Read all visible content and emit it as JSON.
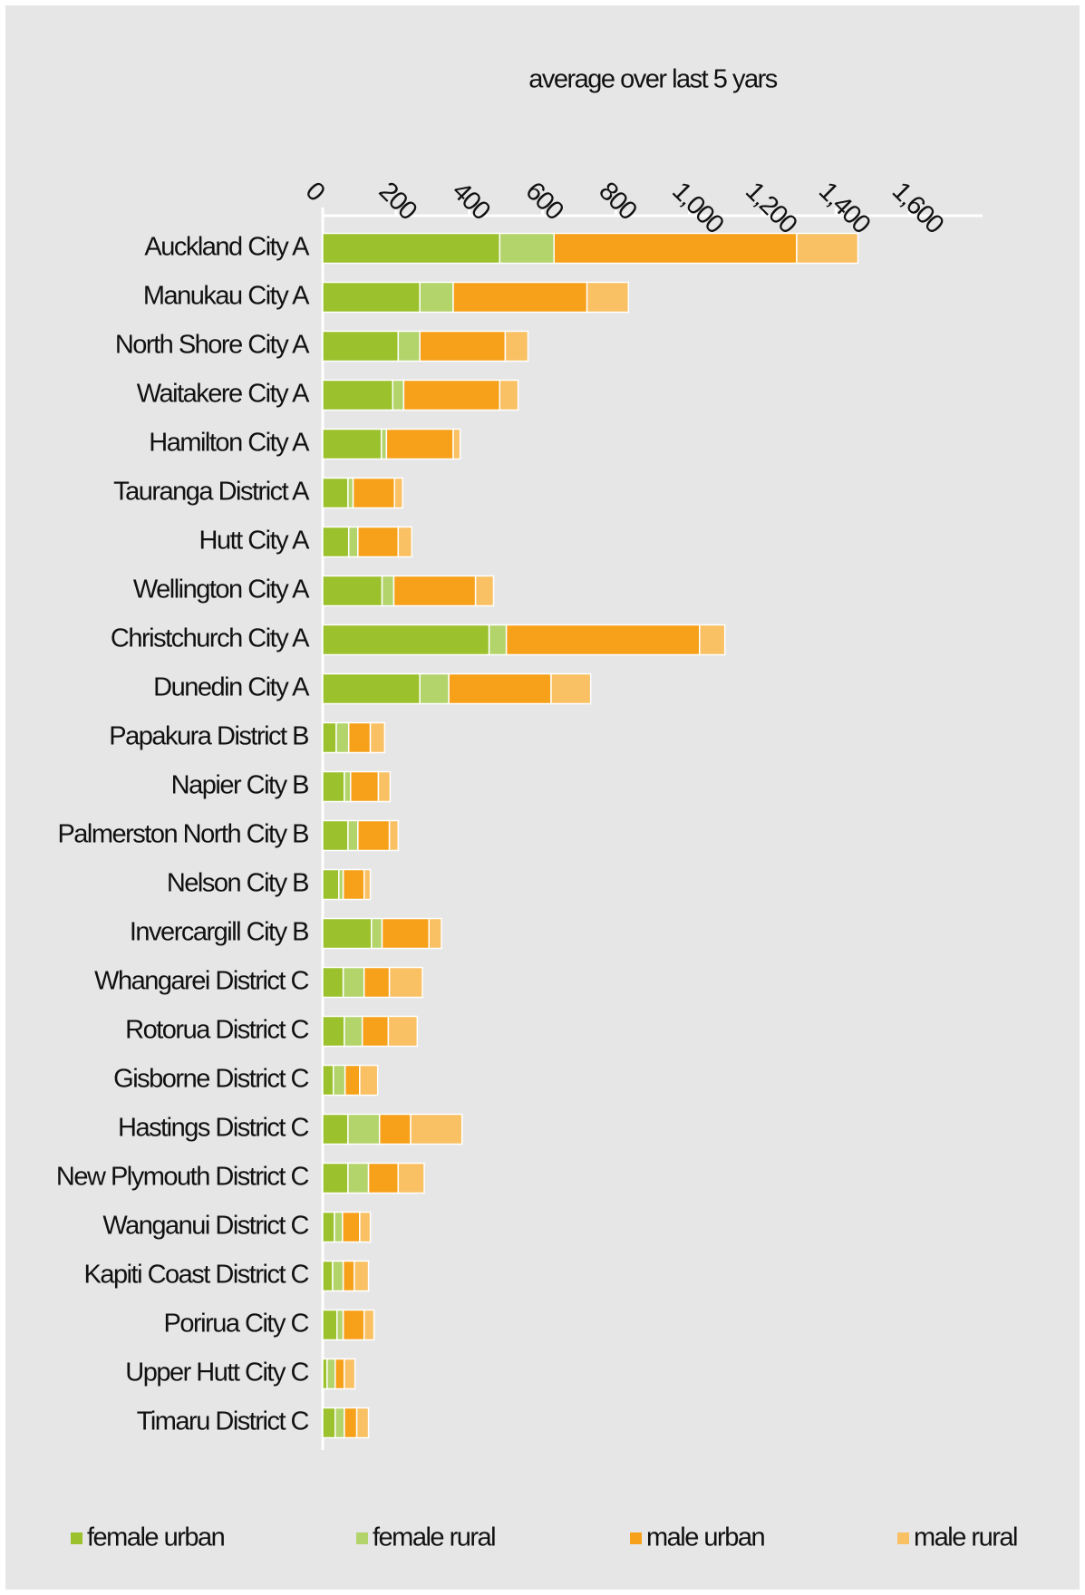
{
  "chart_data": {
    "type": "stacked_barh",
    "title": "average over last 5 yars",
    "categories": [
      "Auckland City A",
      "Manukau City A",
      "North Shore City A",
      "Waitakere City A",
      "Hamilton City A",
      "Tauranga District A",
      "Hutt City A",
      "Wellington City A",
      "Christchurch City A",
      "Dunedin City A",
      "Papakura District B",
      "Napier City B",
      "Palmerston North City B",
      "Nelson City B",
      "Invercargill City B",
      "Whangarei District C",
      "Rotorua District C",
      "Gisborne District C",
      "Hastings District C",
      "New Plymouth District C",
      "Wanganui District C",
      "Kapiti Coast District C",
      "Porirua City C",
      "Upper Hutt City C",
      "Timaru District C"
    ],
    "series": [
      {
        "name": "female urban",
        "color": "#9bc12c",
        "values": [
          483,
          265,
          206,
          191,
          160,
          69,
          71,
          162,
          454,
          265,
          37,
          59,
          69,
          44,
          133,
          56,
          59,
          29,
          69,
          69,
          32,
          27,
          39,
          12,
          34
        ]
      },
      {
        "name": "female rural",
        "color": "#b3d36b",
        "values": [
          148,
          91,
          59,
          30,
          14,
          14,
          25,
          32,
          47,
          79,
          34,
          17,
          27,
          12,
          29,
          57,
          49,
          32,
          86,
          56,
          22,
          29,
          17,
          22,
          25
        ]
      },
      {
        "name": "male urban",
        "color": "#f7a11a",
        "values": [
          662,
          365,
          233,
          262,
          182,
          113,
          110,
          223,
          527,
          279,
          59,
          76,
          86,
          57,
          128,
          69,
          71,
          40,
          85,
          81,
          47,
          30,
          57,
          25,
          34
        ]
      },
      {
        "name": "male rural",
        "color": "#f9c064",
        "values": [
          167,
          113,
          62,
          50,
          19,
          22,
          37,
          49,
          69,
          108,
          39,
          32,
          24,
          17,
          34,
          90,
          79,
          49,
          140,
          71,
          29,
          39,
          27,
          29,
          32
        ]
      }
    ],
    "xlim": [
      0,
      1800
    ],
    "xticks": [
      0,
      200,
      400,
      600,
      800,
      {
        "value": 1000,
        "label": "1,000"
      },
      {
        "value": 1200,
        "label": "1,200"
      },
      {
        "value": 1400,
        "label": "1,400"
      },
      {
        "value": 1600,
        "label": "1,600"
      }
    ],
    "legend": "bottom"
  }
}
